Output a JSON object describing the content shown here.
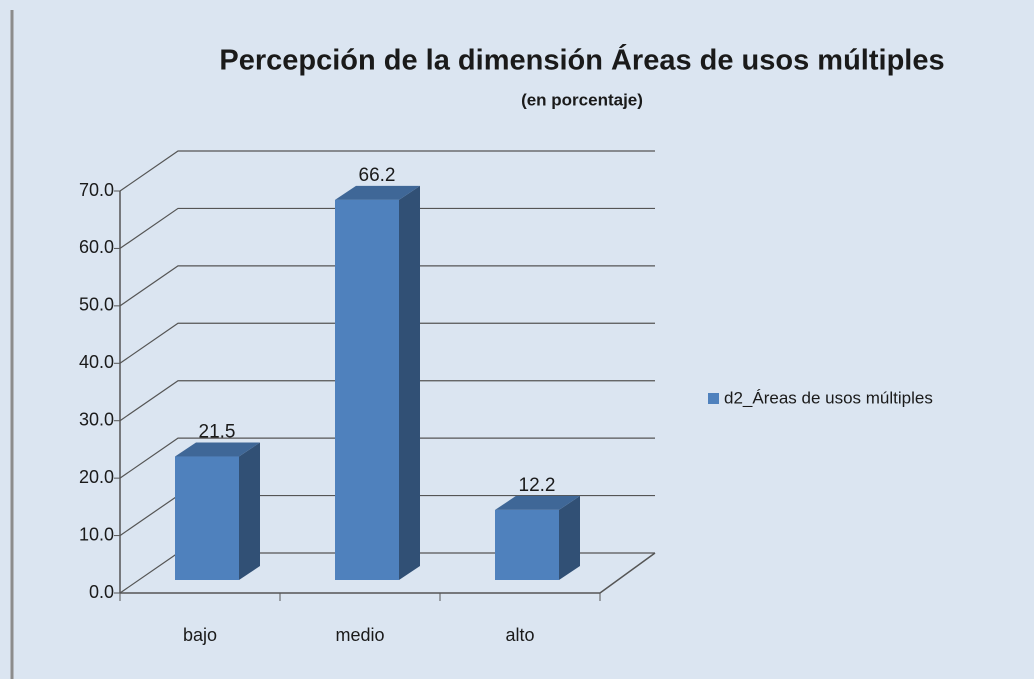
{
  "chart_data": {
    "type": "bar3d",
    "title": "Percepción de la dimensión Áreas de usos múltiples",
    "subtitle": "(en porcentaje)",
    "categories": [
      "bajo",
      "medio",
      "alto"
    ],
    "series": [
      {
        "name": "d2_Áreas de usos múltiples",
        "color": "#4f81bd",
        "values": [
          21.5,
          66.2,
          12.2
        ]
      }
    ],
    "ylim": [
      0,
      70
    ],
    "yticks": [
      {
        "value": 0,
        "label": "0.0"
      },
      {
        "value": 10,
        "label": "10.0"
      },
      {
        "value": 20,
        "label": "20.0"
      },
      {
        "value": 30,
        "label": "30.0"
      },
      {
        "value": 40,
        "label": "40.0"
      },
      {
        "value": 50,
        "label": "50.0"
      },
      {
        "value": 60,
        "label": "60.0"
      },
      {
        "value": 70,
        "label": "70.0"
      }
    ],
    "grid": true,
    "legend": "right"
  }
}
